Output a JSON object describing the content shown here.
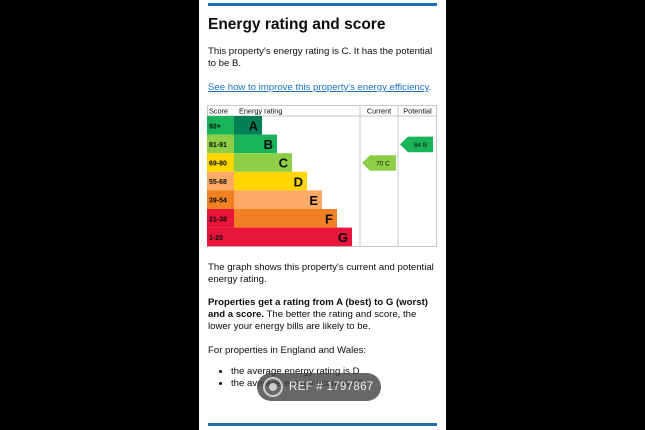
{
  "page": {
    "title": "Energy rating and score",
    "intro": "This property's energy rating is C. It has the potential to be B.",
    "improve_link": "See how to improve this property's energy efficiency",
    "improve_link_suffix": ".",
    "graph_text": "The graph shows this property's current and potential energy rating.",
    "ratings_bold": "Properties get a rating from A (best) to G (worst) and a score.",
    "ratings_rest": " The better the rating and score, the lower your energy bills are likely to be.",
    "regions": "For properties in England and Wales:",
    "bullets": [
      "the average energy rating is D",
      "the average energy score is 60"
    ]
  },
  "chart_data": {
    "type": "bar",
    "headers": {
      "score": "Score",
      "rating": "Energy rating",
      "current": "Current",
      "potential": "Potential"
    },
    "bands": [
      {
        "letter": "A",
        "range": "92+",
        "color": "#008054",
        "score_bg": "#19b459"
      },
      {
        "letter": "B",
        "range": "81-91",
        "color": "#19b459",
        "score_bg": "#8dce46"
      },
      {
        "letter": "C",
        "range": "69-80",
        "color": "#8dce46",
        "score_bg": "#ffd500"
      },
      {
        "letter": "D",
        "range": "55-68",
        "color": "#ffd500",
        "score_bg": "#fcaa65"
      },
      {
        "letter": "E",
        "range": "39-54",
        "color": "#fcaa65",
        "score_bg": "#ef8023"
      },
      {
        "letter": "F",
        "range": "21-38",
        "color": "#ef8023",
        "score_bg": "#e9153b"
      },
      {
        "letter": "G",
        "range": "1-20",
        "color": "#e9153b",
        "score_bg": "#e9153b"
      }
    ],
    "current": {
      "score": 70,
      "letter": "C"
    },
    "potential": {
      "score": 84,
      "letter": "B"
    }
  },
  "watermark": {
    "text": "REF # 1797867",
    "icon": "camera-icon"
  }
}
